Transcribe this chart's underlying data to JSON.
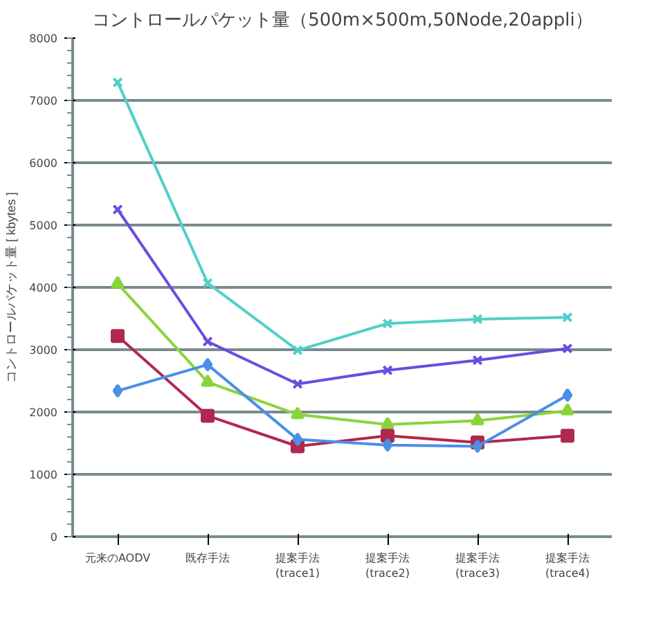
{
  "chart_data": {
    "type": "line",
    "title": "コントロールパケット量（500m×500m,50Node,20appli）",
    "ylabel": "コントロールパケット量 [ kbytes ]",
    "categories": [
      "元来のAODV",
      "既存手法",
      "提案手法\n(trace1)",
      "提案手法\n(trace2)",
      "提案手法\n(trace3)",
      "提案手法\n(trace4)"
    ],
    "series": [
      {
        "color": "#4a8fe8",
        "marker": "diamond",
        "values": [
          2340,
          2760,
          1560,
          1470,
          1450,
          2270
        ]
      },
      {
        "color": "#b0284e",
        "marker": "square",
        "values": [
          3220,
          1940,
          1450,
          1620,
          1510,
          1620
        ]
      },
      {
        "color": "#8ad43a",
        "marker": "triangle",
        "values": [
          4060,
          2480,
          1960,
          1800,
          1860,
          2020
        ]
      },
      {
        "color": "#6a4de0",
        "marker": "cross",
        "values": [
          5250,
          3130,
          2450,
          2670,
          2830,
          3020
        ]
      },
      {
        "color": "#4fd0c8",
        "marker": "cross",
        "values": [
          7290,
          4070,
          2990,
          3420,
          3490,
          3520
        ]
      }
    ],
    "ylim": [
      0,
      8000
    ],
    "yticks": [
      0,
      1000,
      2000,
      3000,
      4000,
      5000,
      6000,
      7000,
      8000
    ],
    "grid": "y",
    "line_style": "solid"
  }
}
